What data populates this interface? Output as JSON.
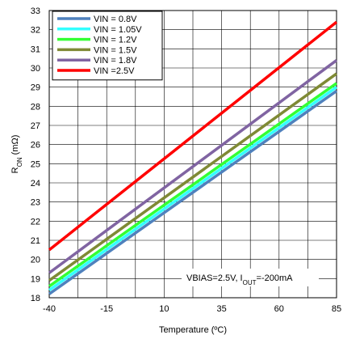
{
  "chart_data": {
    "type": "line",
    "xlabel": "Temperature (ºC)",
    "ylabel": "R",
    "ylabel_sub": "ON",
    "ylabel_unit": " (mΩ)",
    "xlim": [
      -40,
      85
    ],
    "ylim": [
      18,
      33
    ],
    "xticks": [
      -40,
      -15,
      10,
      35,
      60,
      85
    ],
    "yticks": [
      18,
      19,
      20,
      21,
      22,
      23,
      24,
      25,
      26,
      27,
      28,
      29,
      30,
      31,
      32,
      33
    ],
    "grid": true,
    "legend_position": "top-left",
    "annotation": {
      "prefix": "VBIAS=2.5V, I",
      "sub": "OUT",
      "suffix": "=-200mA"
    },
    "series": [
      {
        "name": "VIN = 0.8V",
        "color": "#4f81bd",
        "x": [
          -40,
          85
        ],
        "y": [
          18.2,
          28.8
        ]
      },
      {
        "name": "VIN = 1.05V",
        "color": "#33ffff",
        "x": [
          -40,
          85
        ],
        "y": [
          18.4,
          29.0
        ]
      },
      {
        "name": "VIN = 1.2V",
        "color": "#33ff33",
        "x": [
          -40,
          85
        ],
        "y": [
          18.6,
          29.2
        ]
      },
      {
        "name": "VIN = 1.5V",
        "color": "#7f8a35",
        "x": [
          -40,
          85
        ],
        "y": [
          18.9,
          29.7
        ]
      },
      {
        "name": "VIN = 1.8V",
        "color": "#8064a2",
        "x": [
          -40,
          85
        ],
        "y": [
          19.3,
          30.4
        ]
      },
      {
        "name": "VIN =2.5V",
        "color": "#ff0000",
        "x": [
          -40,
          85
        ],
        "y": [
          20.5,
          32.4
        ]
      }
    ]
  }
}
